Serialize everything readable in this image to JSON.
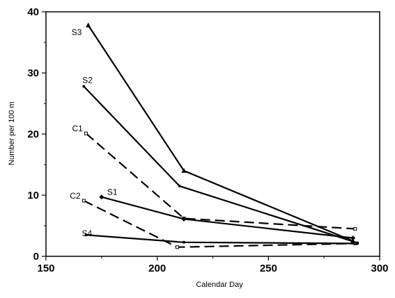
{
  "chart_data": {
    "type": "line",
    "title": "",
    "xlabel": "Calendar Day",
    "ylabel": "Number per 100 m",
    "xlim": [
      150,
      300
    ],
    "ylim": [
      0,
      40
    ],
    "x_ticks": [
      150,
      200,
      250,
      300
    ],
    "y_ticks": [
      0,
      10,
      20,
      30,
      40
    ],
    "grid": false,
    "legend": "none",
    "series": [
      {
        "name": "S3",
        "style": "solid",
        "marker": "triangle",
        "x": [
          169,
          212,
          288
        ],
        "y": [
          37.8,
          14.0,
          2.5
        ]
      },
      {
        "name": "S2",
        "style": "solid",
        "marker": "dot",
        "x": [
          167,
          210,
          290
        ],
        "y": [
          27.8,
          11.5,
          2.2
        ]
      },
      {
        "name": "C1",
        "style": "dashed",
        "marker": "open-square",
        "x": [
          168,
          212,
          289
        ],
        "y": [
          20.1,
          6.2,
          4.5
        ]
      },
      {
        "name": "S1",
        "style": "solid",
        "marker": "diamond",
        "x": [
          175,
          212,
          288
        ],
        "y": [
          9.7,
          6.1,
          3.0
        ]
      },
      {
        "name": "C2",
        "style": "dashed",
        "marker": "open-square",
        "x": [
          167,
          209,
          289
        ],
        "y": [
          9.1,
          1.5,
          2.1
        ]
      },
      {
        "name": "S4",
        "style": "solid",
        "marker": "dot",
        "x": [
          168,
          212,
          290
        ],
        "y": [
          3.5,
          2.3,
          2.1
        ]
      }
    ]
  }
}
